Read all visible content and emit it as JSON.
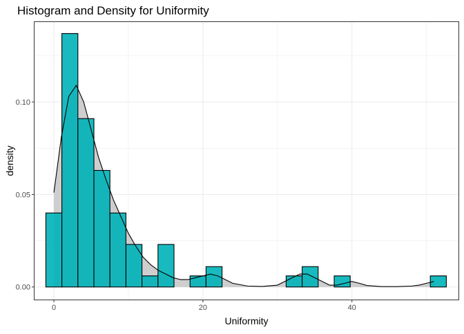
{
  "chart_data": {
    "type": "bar",
    "title": "Histogram and Density for Uniformity",
    "xlabel": "Uniformity",
    "ylabel": "density",
    "xlim": [
      -2.6,
      54.3
    ],
    "ylim": [
      -0.0068,
      0.1432
    ],
    "x_ticks": [
      0,
      20,
      40
    ],
    "y_ticks": [
      0.0,
      0.05,
      0.1
    ],
    "x_tick_labels": [
      "0",
      "20",
      "40"
    ],
    "y_tick_labels": [
      "0.00",
      "0.05",
      "0.10"
    ],
    "grid": true,
    "bin_width": 2.15,
    "histogram": {
      "bin_start": [
        -1.08,
        1.07,
        3.22,
        5.37,
        7.52,
        9.67,
        11.82,
        13.97,
        16.12,
        18.27,
        20.42,
        22.57,
        24.72,
        26.87,
        29.02,
        31.17,
        33.32,
        35.47,
        37.62,
        39.77,
        41.92,
        44.07,
        46.22,
        48.37,
        50.52
      ],
      "bin_end": [
        1.07,
        3.22,
        5.37,
        7.52,
        9.67,
        11.82,
        13.97,
        16.12,
        18.27,
        20.42,
        22.57,
        24.72,
        26.87,
        29.02,
        31.17,
        33.32,
        35.47,
        37.62,
        39.77,
        41.92,
        44.07,
        46.22,
        48.37,
        50.52,
        52.67
      ],
      "density": [
        0.04,
        0.137,
        0.091,
        0.063,
        0.04,
        0.023,
        0.006,
        0.023,
        0.0,
        0.006,
        0.011,
        0.0,
        0.0,
        0.0,
        0.0,
        0.006,
        0.011,
        0.0,
        0.006,
        0.0,
        0.0,
        0.0,
        0.0,
        0.0,
        0.006
      ]
    },
    "density_curve": {
      "x": [
        0.0,
        1.0,
        2.0,
        3.0,
        4.0,
        5.0,
        6.0,
        7.0,
        8.0,
        9.0,
        10.0,
        11.0,
        12.0,
        13.0,
        14.0,
        15.0,
        16.0,
        17.0,
        18.0,
        19.0,
        20.0,
        21.0,
        22.0,
        23.0,
        24.0,
        26.0,
        28.0,
        30.0,
        31.0,
        32.0,
        33.0,
        34.0,
        35.0,
        36.0,
        37.0,
        38.0,
        39.0,
        40.0,
        41.0,
        42.0,
        44.0,
        46.0,
        48.0,
        49.0,
        50.0,
        51.0
      ],
      "y": [
        0.051,
        0.081,
        0.103,
        0.109,
        0.1,
        0.085,
        0.07,
        0.058,
        0.047,
        0.038,
        0.029,
        0.022,
        0.016,
        0.012,
        0.009,
        0.007,
        0.005,
        0.004,
        0.004,
        0.005,
        0.006,
        0.007,
        0.006,
        0.004,
        0.002,
        0.0005,
        0.0003,
        0.001,
        0.003,
        0.005,
        0.007,
        0.007,
        0.005,
        0.003,
        0.001,
        0.001,
        0.002,
        0.003,
        0.002,
        0.0008,
        0.0002,
        0.0002,
        0.0005,
        0.001,
        0.002,
        0.003
      ]
    },
    "colors": {
      "bar_fill": "#00b3b8",
      "bar_stroke": "#000000",
      "density_fill": "#bebebe",
      "density_stroke": "#000000",
      "grid": "#ebebeb",
      "panel_border": "#333333"
    }
  }
}
